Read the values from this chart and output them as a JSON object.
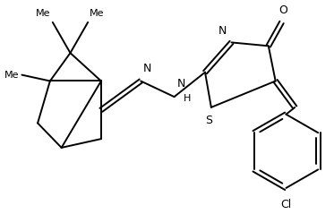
{
  "background_color": "#ffffff",
  "line_color": "#000000",
  "line_width": 1.4,
  "figsize": [
    3.73,
    2.39
  ],
  "dpi": 100,
  "xlim": [
    0,
    373
  ],
  "ylim": [
    0,
    239
  ]
}
